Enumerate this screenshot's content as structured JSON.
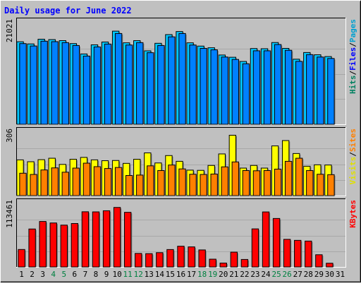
{
  "chart_data": {
    "type": "bar",
    "title": "Daily usage for June 2022",
    "categories": [
      "1",
      "2",
      "3",
      "4",
      "5",
      "6",
      "7",
      "8",
      "9",
      "10",
      "11",
      "12",
      "13",
      "14",
      "15",
      "16",
      "17",
      "18",
      "19",
      "20",
      "21",
      "22",
      "23",
      "24",
      "25",
      "26",
      "27",
      "28",
      "29",
      "30",
      "31"
    ],
    "weekend_days": [
      "4",
      "5",
      "11",
      "12",
      "18",
      "19",
      "25",
      "26"
    ],
    "panels": [
      {
        "id": "top",
        "max_label": "21021",
        "ylim": [
          0,
          21021
        ],
        "legend": [
          {
            "text": "Pages",
            "color": "#00a0d0"
          },
          {
            "text": "Files",
            "color": "#0000ff"
          },
          {
            "text": "Hits",
            "color": "#008060"
          }
        ],
        "series": [
          {
            "name": "Hits",
            "color": "#00c8ff",
            "values": [
              17180,
              16730,
              17710,
              17630,
              17420,
              16800,
              14640,
              16540,
              17130,
              19390,
              16960,
              17410,
              15290,
              16860,
              18670,
              19310,
              16960,
              16280,
              15930,
              14420,
              13950,
              13080,
              15770,
              15730,
              17020,
              15800,
              13550,
              14940,
              14470,
              14100,
              null
            ]
          },
          {
            "name": "Files",
            "color": "#0080ff",
            "values": [
              16800,
              16300,
              17300,
              17200,
              17000,
              16400,
              14200,
              16100,
              16700,
              18900,
              16500,
              17000,
              14900,
              16400,
              18200,
              18900,
              16500,
              15800,
              15500,
              14000,
              13500,
              12600,
              15300,
              15300,
              16600,
              15400,
              13100,
              14500,
              14000,
              13700,
              null
            ]
          }
        ]
      },
      {
        "id": "mid",
        "max_label": "306",
        "ylim": [
          0,
          306
        ],
        "legend": [
          {
            "text": "Sites",
            "color": "#ff8000"
          },
          {
            "text": "Visits",
            "color": "#e0e000"
          }
        ],
        "series": [
          {
            "name": "Visits",
            "color": "#ffff00",
            "values": [
              174,
              165,
              175,
              182,
              152,
              177,
              186,
              174,
              170,
              171,
              157,
              177,
              208,
              159,
              195,
              167,
              124,
              123,
              147,
              203,
              294,
              134,
              147,
              134,
              242,
              268,
              205,
              143,
              150,
              149,
              null
            ]
          },
          {
            "name": "Sites",
            "color": "#ff8000",
            "values": [
              109,
              103,
              125,
              135,
              114,
              134,
              158,
              141,
              132,
              137,
              98,
              100,
              145,
              122,
              149,
              130,
              104,
              103,
              105,
              140,
              164,
              122,
              121,
              122,
              129,
              167,
              182,
              122,
              104,
              102,
              null
            ]
          }
        ]
      },
      {
        "id": "bottom",
        "max_label": "113461",
        "ylim": [
          0,
          113461
        ],
        "legend": [
          {
            "text": "KBytes",
            "color": "#ff0000"
          }
        ],
        "series": [
          {
            "name": "KBytes",
            "color": "#ff0000",
            "values": [
              31500,
              68500,
              82100,
              79400,
              75500,
              78400,
              99600,
              99400,
              101400,
              107400,
              98600,
              24400,
              24000,
              25800,
              31400,
              37400,
              36200,
              30700,
              14000,
              7000,
              26700,
              13500,
              68700,
              99300,
              87500,
              49800,
              48000,
              46700,
              22000,
              6700,
              null
            ]
          }
        ]
      }
    ]
  }
}
